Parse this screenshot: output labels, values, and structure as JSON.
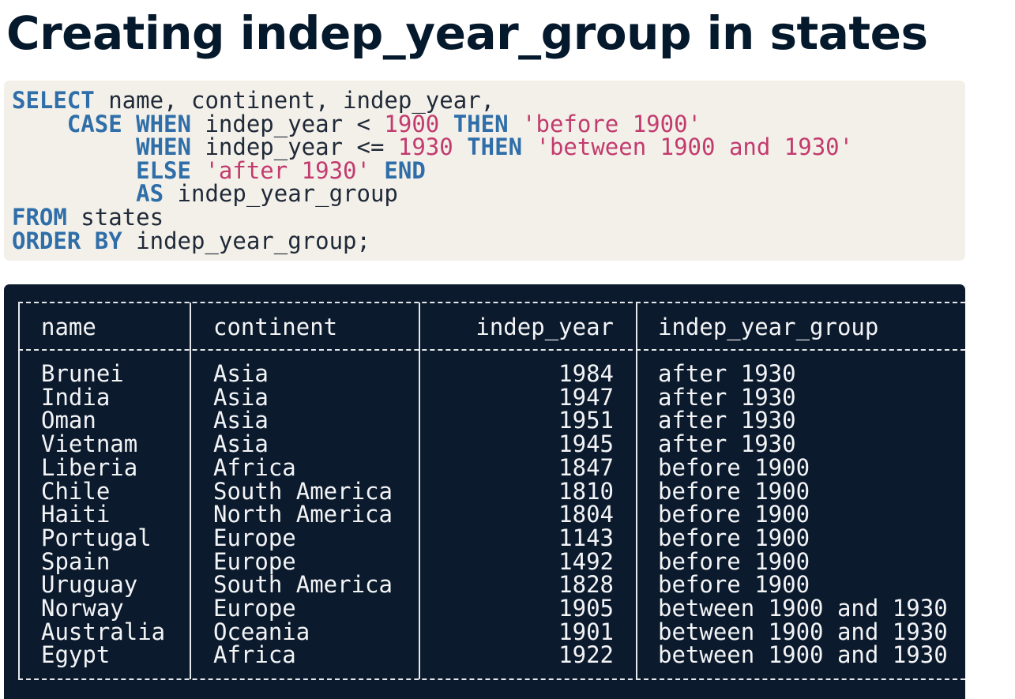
{
  "title": "Creating indep_year_group in states",
  "code": {
    "lines": [
      [
        {
          "text": "SELECT",
          "kind": "kw"
        },
        {
          "text": " name, continent, indep_year,",
          "kind": "plain"
        }
      ],
      [
        {
          "text": "    CASE WHEN",
          "kind": "kw"
        },
        {
          "text": " indep_year < ",
          "kind": "plain"
        },
        {
          "text": "1900",
          "kind": "num"
        },
        {
          "text": " THEN",
          "kind": "kw"
        },
        {
          "text": " 'before 1900'",
          "kind": "str"
        }
      ],
      [
        {
          "text": "         WHEN",
          "kind": "kw"
        },
        {
          "text": " indep_year <= ",
          "kind": "plain"
        },
        {
          "text": "1930",
          "kind": "num"
        },
        {
          "text": " THEN",
          "kind": "kw"
        },
        {
          "text": " 'between 1900 and 1930'",
          "kind": "str"
        }
      ],
      [
        {
          "text": "         ELSE",
          "kind": "kw"
        },
        {
          "text": " 'after 1930'",
          "kind": "str"
        },
        {
          "text": " END",
          "kind": "kw"
        }
      ],
      [
        {
          "text": "         AS",
          "kind": "kw"
        },
        {
          "text": " indep_year_group",
          "kind": "plain"
        }
      ],
      [
        {
          "text": "FROM",
          "kind": "kw"
        },
        {
          "text": " states",
          "kind": "plain"
        }
      ],
      [
        {
          "text": "ORDER BY",
          "kind": "kw"
        },
        {
          "text": " indep_year_group;",
          "kind": "plain"
        }
      ]
    ]
  },
  "table": {
    "columns": [
      "name",
      "continent",
      "indep_year",
      "indep_year_group"
    ],
    "rows": [
      [
        "Brunei",
        "Asia",
        1984,
        "after 1930"
      ],
      [
        "India",
        "Asia",
        1947,
        "after 1930"
      ],
      [
        "Oman",
        "Asia",
        1951,
        "after 1930"
      ],
      [
        "Vietnam",
        "Asia",
        1945,
        "after 1930"
      ],
      [
        "Liberia",
        "Africa",
        1847,
        "before 1900"
      ],
      [
        "Chile",
        "South America",
        1810,
        "before 1900"
      ],
      [
        "Haiti",
        "North America",
        1804,
        "before 1900"
      ],
      [
        "Portugal",
        "Europe",
        1143,
        "before 1900"
      ],
      [
        "Spain",
        "Europe",
        1492,
        "before 1900"
      ],
      [
        "Uruguay",
        "South America",
        1828,
        "before 1900"
      ],
      [
        "Norway",
        "Europe",
        1905,
        "between 1900 and 1930"
      ],
      [
        "Australia",
        "Oceania",
        1901,
        "between 1900 and 1930"
      ],
      [
        "Egypt",
        "Africa",
        1922,
        "between 1900 and 1930"
      ]
    ]
  }
}
